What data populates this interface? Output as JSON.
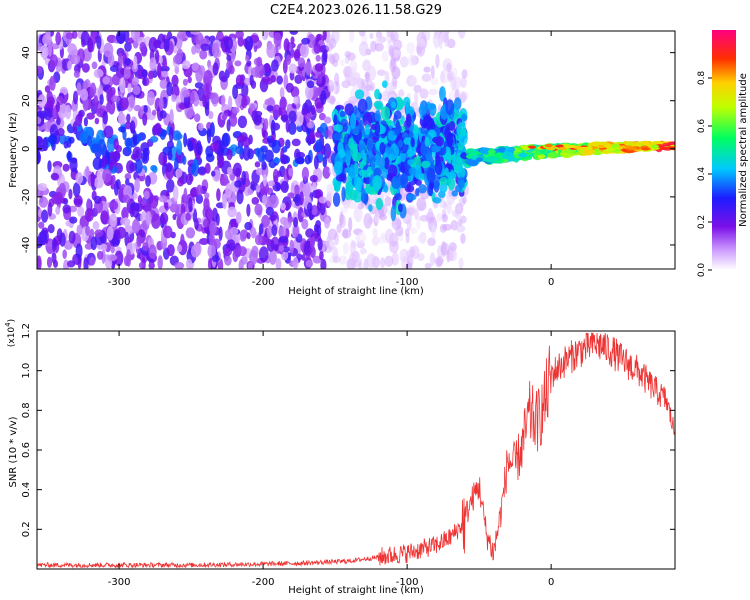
{
  "title": "C2E4.2023.026.11.58.G29",
  "colors": {
    "snr_line": "#ee3333",
    "axis": "#000000",
    "background": "#ffffff"
  },
  "chart_data": [
    {
      "type": "heatmap",
      "xlabel": "Height of straight line (km)",
      "ylabel": "Frequency (Hz)",
      "xlim": [
        -357,
        86
      ],
      "ylim": [
        -50,
        49
      ],
      "xticks": [
        "-300",
        "-200",
        "-100",
        "0"
      ],
      "xtick_values": [
        -300,
        -200,
        -100,
        0
      ],
      "yticks": [
        "40",
        "20",
        "0",
        "-20",
        "-40"
      ],
      "ytick_values": [
        40,
        20,
        0,
        -20,
        -40
      ],
      "colorbar": {
        "label": "Normalized spectral amplitude",
        "range": [
          0,
          1
        ],
        "ticks": [
          "0.0",
          "0.2",
          "0.4",
          "0.6",
          "0.8"
        ],
        "tick_values": [
          0.0,
          0.2,
          0.4,
          0.6,
          0.8
        ],
        "colormap": "white-purple-blue-cyan-green-yellow-red-magenta"
      },
      "regions": [
        {
          "x_range": [
            -357,
            -155
          ],
          "freq_spread": 49,
          "amplitude": 0.15,
          "note": "dense noise"
        },
        {
          "x_range": [
            -155,
            -60
          ],
          "freq_spread": 49,
          "amplitude": 0.05,
          "note": "sparse noise"
        },
        {
          "x_range": [
            -150,
            -60
          ],
          "freq_spread": 10,
          "amplitude": 0.35,
          "note": "central band"
        },
        {
          "x_range": [
            -60,
            86
          ],
          "freq_spread": 2,
          "amplitude": 0.75,
          "note": "narrow tone near 0 Hz"
        }
      ]
    },
    {
      "type": "line",
      "xlabel": "Height of straight line (km)",
      "ylabel": "SNR (10 * v/v)",
      "multiplier": "(x10^4)",
      "multiplier_base": "(x10",
      "multiplier_exp": "4",
      "multiplier_close": ")",
      "xlim": [
        -357,
        86
      ],
      "ylim": [
        0,
        1.2
      ],
      "xticks": [
        "-300",
        "-200",
        "-100",
        "0"
      ],
      "xtick_values": [
        -300,
        -200,
        -100,
        0
      ],
      "yticks": [
        "0.2",
        "0.4",
        "0.6",
        "0.8",
        "1.0",
        "1.2"
      ],
      "ytick_values": [
        0.2,
        0.4,
        0.6,
        0.8,
        1.0,
        1.2
      ],
      "series": [
        {
          "x": [
            -357,
            -300,
            -250,
            -200,
            -170,
            -140,
            -120,
            -100,
            -90,
            -80,
            -70,
            -62,
            -55,
            -50,
            -45,
            -40,
            -35,
            -30,
            -25,
            -20,
            -15,
            -10,
            -5,
            0,
            10,
            20,
            30,
            40,
            50,
            60,
            70,
            80,
            86
          ],
          "values": [
            0.02,
            0.02,
            0.02,
            0.025,
            0.03,
            0.04,
            0.06,
            0.08,
            0.1,
            0.12,
            0.16,
            0.22,
            0.35,
            0.42,
            0.18,
            0.08,
            0.28,
            0.55,
            0.52,
            0.62,
            0.78,
            0.74,
            0.82,
            0.98,
            1.05,
            1.1,
            1.14,
            1.11,
            1.05,
            1.0,
            0.92,
            0.85,
            0.68
          ]
        }
      ]
    }
  ]
}
